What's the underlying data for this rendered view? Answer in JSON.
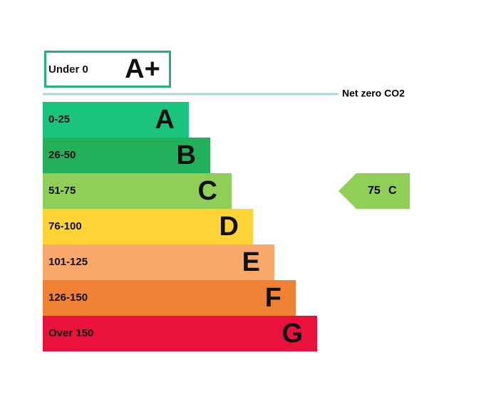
{
  "rating": {
    "top_band": {
      "range": "Under 0",
      "letter": "A+",
      "color": "#21b573"
    },
    "net_zero_label": "Net zero CO2",
    "bands": [
      {
        "range": "0-25",
        "letter": "A",
        "color": "#1ac47f"
      },
      {
        "range": "26-50",
        "letter": "B",
        "color": "#22b05a"
      },
      {
        "range": "51-75",
        "letter": "C",
        "color": "#8fce57"
      },
      {
        "range": "76-100",
        "letter": "D",
        "color": "#fdd335"
      },
      {
        "range": "101-125",
        "letter": "E",
        "color": "#f7a86a"
      },
      {
        "range": "126-150",
        "letter": "F",
        "color": "#ef8234"
      },
      {
        "range": "Over 150",
        "letter": "G",
        "color": "#e8123c"
      }
    ],
    "current": {
      "value": 75,
      "band": "C"
    }
  }
}
